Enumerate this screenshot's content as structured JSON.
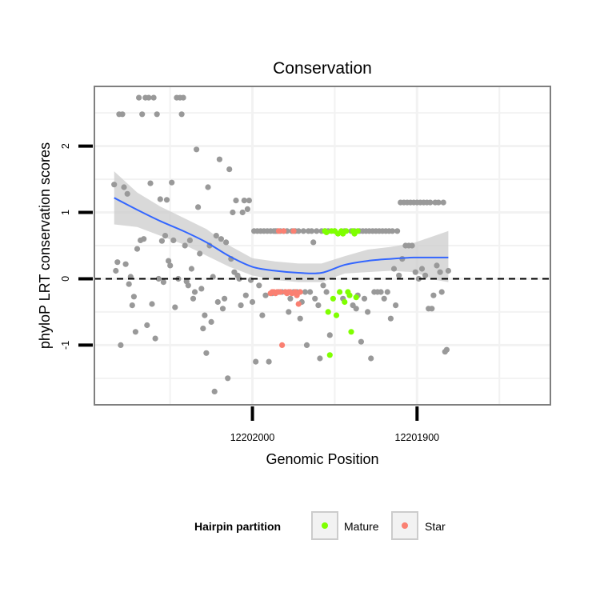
{
  "chart_data": {
    "type": "scatter",
    "title": "Conservation",
    "xlabel": "Genomic Position",
    "ylabel": "phyloP LRT conservation scores",
    "x_ticks": [
      {
        "value": 12202000,
        "label": "12202000"
      },
      {
        "value": 12201900,
        "label": "12201900"
      }
    ],
    "y_ticks": [
      {
        "value": -1,
        "label": "-1"
      },
      {
        "value": 0,
        "label": "0"
      },
      {
        "value": 1,
        "label": "1"
      },
      {
        "value": 2,
        "label": "2"
      }
    ],
    "xlim": [
      12202096,
      12201819
    ],
    "ylim": [
      -1.9,
      2.9
    ],
    "x_reversed": true,
    "reference_line": {
      "y": 0,
      "style": "dashed"
    },
    "legend": {
      "title": "Hairpin partition",
      "position": "bottom",
      "entries": [
        {
          "name": "Mature",
          "color": "#7fff00"
        },
        {
          "name": "Star",
          "color": "#fa8072"
        }
      ]
    },
    "colors": {
      "Other": "#999999",
      "Mature": "#7fff00",
      "Star": "#fa8072",
      "smooth": "#3366ff",
      "ribbon": "#cccccc",
      "grid": "#f2f2f2",
      "panel_border": "#7f7f7f"
    },
    "series": [
      {
        "name": "Other",
        "points": [
          [
            12202084,
            1.42
          ],
          [
            12202083,
            0.12
          ],
          [
            12202082,
            0.25
          ],
          [
            12202081,
            2.48
          ],
          [
            12202080,
            -1.0
          ],
          [
            12202079,
            2.48
          ],
          [
            12202078,
            1.38
          ],
          [
            12202077,
            0.22
          ],
          [
            12202076,
            1.28
          ],
          [
            12202075,
            -0.08
          ],
          [
            12202074,
            0.03
          ],
          [
            12202073,
            -0.4
          ],
          [
            12202072,
            -0.27
          ],
          [
            12202071,
            -0.8
          ],
          [
            12202070,
            0.45
          ],
          [
            12202069,
            2.73
          ],
          [
            12202068,
            0.58
          ],
          [
            12202067,
            2.48
          ],
          [
            12202066,
            0.6
          ],
          [
            12202065,
            2.73
          ],
          [
            12202064,
            -0.7
          ],
          [
            12202063,
            2.73
          ],
          [
            12202062,
            1.44
          ],
          [
            12202061,
            -0.38
          ],
          [
            12202060,
            2.73
          ],
          [
            12202059,
            -0.9
          ],
          [
            12202058,
            2.48
          ],
          [
            12202057,
            0.0
          ],
          [
            12202056,
            1.2
          ],
          [
            12202055,
            0.57
          ],
          [
            12202054,
            -0.05
          ],
          [
            12202053,
            0.65
          ],
          [
            12202052,
            1.19
          ],
          [
            12202051,
            0.27
          ],
          [
            12202050,
            0.2
          ],
          [
            12202049,
            1.45
          ],
          [
            12202048,
            0.58
          ],
          [
            12202047,
            -0.43
          ],
          [
            12202046,
            2.73
          ],
          [
            12202045,
            0.0
          ],
          [
            12202044,
            2.73
          ],
          [
            12202043,
            2.48
          ],
          [
            12202042,
            2.73
          ],
          [
            12202041,
            0.5
          ],
          [
            12202040,
            -0.04
          ],
          [
            12202039,
            -0.1
          ],
          [
            12202038,
            0.58
          ],
          [
            12202037,
            0.15
          ],
          [
            12202036,
            -0.3
          ],
          [
            12202035,
            -0.2
          ],
          [
            12202034,
            1.95
          ],
          [
            12202033,
            1.08
          ],
          [
            12202032,
            0.38
          ],
          [
            12202031,
            -0.15
          ],
          [
            12202030,
            -0.75
          ],
          [
            12202029,
            -0.55
          ],
          [
            12202028,
            -1.12
          ],
          [
            12202027,
            1.38
          ],
          [
            12202026,
            0.5
          ],
          [
            12202025,
            -0.65
          ],
          [
            12202024,
            0.03
          ],
          [
            12202023,
            -1.7
          ],
          [
            12202022,
            0.65
          ],
          [
            12202021,
            -0.35
          ],
          [
            12202020,
            1.8
          ],
          [
            12202019,
            0.6
          ],
          [
            12202018,
            -0.45
          ],
          [
            12202017,
            -0.3
          ],
          [
            12202016,
            0.55
          ],
          [
            12202015,
            -1.5
          ],
          [
            12202014,
            1.65
          ],
          [
            12202013,
            0.3
          ],
          [
            12202012,
            1.0
          ],
          [
            12202011,
            0.1
          ],
          [
            12202010,
            1.18
          ],
          [
            12202009,
            0.05
          ],
          [
            12202008,
            0.0
          ],
          [
            12202007,
            -0.4
          ],
          [
            12202006,
            1.0
          ],
          [
            12202005,
            1.18
          ],
          [
            12202004,
            -0.25
          ],
          [
            12202003,
            1.05
          ],
          [
            12202002,
            1.18
          ],
          [
            12202001,
            -0.02
          ],
          [
            12202000,
            -0.35
          ],
          [
            12201999,
            0.72
          ],
          [
            12201998,
            -1.25
          ],
          [
            12201997,
            0.72
          ],
          [
            12201996,
            -0.1
          ],
          [
            12201995,
            0.72
          ],
          [
            12201994,
            -0.55
          ],
          [
            12201993,
            0.72
          ],
          [
            12201992,
            -0.25
          ],
          [
            12201991,
            0.72
          ],
          [
            12201990,
            -1.25
          ],
          [
            12201989,
            0.72
          ],
          [
            12201988,
            -0.22
          ],
          [
            12201987,
            0.72
          ],
          [
            12201986,
            0.72
          ],
          [
            12201985,
            0.72
          ],
          [
            12201984,
            -0.2
          ],
          [
            12201983,
            0.72
          ],
          [
            12201982,
            -0.2
          ],
          [
            12201981,
            0.72
          ],
          [
            12201980,
            -0.2
          ],
          [
            12201979,
            0.72
          ],
          [
            12201978,
            -0.5
          ],
          [
            12201977,
            -0.3
          ],
          [
            12201976,
            0.72
          ],
          [
            12201975,
            -0.2
          ],
          [
            12201974,
            0.72
          ],
          [
            12201973,
            -0.2
          ],
          [
            12201972,
            0.72
          ],
          [
            12201971,
            -0.6
          ],
          [
            12201970,
            -0.35
          ],
          [
            12201969,
            0.72
          ],
          [
            12201968,
            -0.2
          ],
          [
            12201967,
            -1.0
          ],
          [
            12201966,
            0.72
          ],
          [
            12201965,
            -0.2
          ],
          [
            12201964,
            0.72
          ],
          [
            12201963,
            0.55
          ],
          [
            12201962,
            -0.3
          ],
          [
            12201961,
            0.72
          ],
          [
            12201960,
            -0.4
          ],
          [
            12201959,
            -1.2
          ],
          [
            12201958,
            0.72
          ],
          [
            12201957,
            -0.1
          ],
          [
            12201956,
            0.72
          ],
          [
            12201955,
            -0.2
          ],
          [
            12201954,
            0.72
          ],
          [
            12201953,
            -0.85
          ],
          [
            12201950,
            0.72
          ],
          [
            12201945,
            -0.3
          ],
          [
            12201944,
            0.72
          ],
          [
            12201940,
            0.72
          ],
          [
            12201939,
            -0.4
          ],
          [
            12201938,
            0.72
          ],
          [
            12201937,
            -0.45
          ],
          [
            12201936,
            -0.25
          ],
          [
            12201935,
            0.72
          ],
          [
            12201934,
            -0.95
          ],
          [
            12201933,
            0.72
          ],
          [
            12201932,
            -0.3
          ],
          [
            12201931,
            0.72
          ],
          [
            12201930,
            -0.5
          ],
          [
            12201929,
            0.72
          ],
          [
            12201928,
            -1.2
          ],
          [
            12201927,
            0.72
          ],
          [
            12201926,
            -0.2
          ],
          [
            12201925,
            0.72
          ],
          [
            12201924,
            -0.2
          ],
          [
            12201923,
            0.72
          ],
          [
            12201922,
            -0.2
          ],
          [
            12201921,
            0.72
          ],
          [
            12201920,
            -0.3
          ],
          [
            12201919,
            0.72
          ],
          [
            12201918,
            -0.2
          ],
          [
            12201917,
            0.72
          ],
          [
            12201916,
            -0.6
          ],
          [
            12201915,
            0.72
          ],
          [
            12201914,
            0.15
          ],
          [
            12201913,
            -0.4
          ],
          [
            12201912,
            0.72
          ],
          [
            12201911,
            0.05
          ],
          [
            12201910,
            1.15
          ],
          [
            12201909,
            0.3
          ],
          [
            12201908,
            1.15
          ],
          [
            12201907,
            0.5
          ],
          [
            12201906,
            1.15
          ],
          [
            12201905,
            0.5
          ],
          [
            12201904,
            1.15
          ],
          [
            12201903,
            0.5
          ],
          [
            12201902,
            1.15
          ],
          [
            12201901,
            0.1
          ],
          [
            12201900,
            1.15
          ],
          [
            12201899,
            0.0
          ],
          [
            12201898,
            1.15
          ],
          [
            12201897,
            0.15
          ],
          [
            12201896,
            1.15
          ],
          [
            12201895,
            0.05
          ],
          [
            12201894,
            1.15
          ],
          [
            12201893,
            -0.45
          ],
          [
            12201892,
            1.15
          ],
          [
            12201891,
            -0.45
          ],
          [
            12201890,
            -0.25
          ],
          [
            12201889,
            1.15
          ],
          [
            12201888,
            0.2
          ],
          [
            12201887,
            1.15
          ],
          [
            12201886,
            0.1
          ],
          [
            12201885,
            -0.2
          ],
          [
            12201884,
            1.15
          ],
          [
            12201883,
            -1.1
          ],
          [
            12201882,
            -1.07
          ],
          [
            12201881,
            0.12
          ]
        ]
      },
      {
        "name": "Mature",
        "points": [
          [
            12201956,
            0.72
          ],
          [
            12201955,
            0.7
          ],
          [
            12201954,
            -0.5
          ],
          [
            12201953,
            -1.15
          ],
          [
            12201952,
            0.72
          ],
          [
            12201951,
            -0.3
          ],
          [
            12201950,
            0.72
          ],
          [
            12201949,
            -0.55
          ],
          [
            12201948,
            0.68
          ],
          [
            12201947,
            -0.2
          ],
          [
            12201946,
            0.72
          ],
          [
            12201945,
            0.68
          ],
          [
            12201944,
            -0.35
          ],
          [
            12201943,
            0.72
          ],
          [
            12201942,
            -0.2
          ],
          [
            12201941,
            -0.25
          ],
          [
            12201940,
            -0.8
          ],
          [
            12201939,
            0.72
          ],
          [
            12201938,
            0.68
          ],
          [
            12201937,
            -0.28
          ],
          [
            12201936,
            0.72
          ]
        ]
      },
      {
        "name": "Star",
        "points": [
          [
            12201989,
            -0.22
          ],
          [
            12201988,
            -0.2
          ],
          [
            12201987,
            -0.2
          ],
          [
            12201986,
            -0.22
          ],
          [
            12201985,
            -0.2
          ],
          [
            12201984,
            0.72
          ],
          [
            12201983,
            -0.2
          ],
          [
            12201982,
            -1.0
          ],
          [
            12201981,
            0.72
          ],
          [
            12201980,
            -0.2
          ],
          [
            12201979,
            -0.22
          ],
          [
            12201978,
            -0.2
          ],
          [
            12201977,
            -0.2
          ],
          [
            12201976,
            -0.22
          ],
          [
            12201975,
            0.72
          ],
          [
            12201974,
            -0.2
          ],
          [
            12201973,
            -0.25
          ],
          [
            12201972,
            -0.38
          ],
          [
            12201971,
            -0.2
          ]
        ]
      }
    ],
    "smooth": {
      "method": "loess",
      "color": "#3366ff",
      "x": [
        12202084,
        12202070,
        12202056,
        12202042,
        12202028,
        12202014,
        12202000,
        12201986,
        12201972,
        12201958,
        12201944,
        12201930,
        12201916,
        12201902,
        12201888,
        12201881
      ],
      "y": [
        1.22,
        1.04,
        0.87,
        0.72,
        0.55,
        0.34,
        0.18,
        0.12,
        0.09,
        0.09,
        0.21,
        0.27,
        0.3,
        0.32,
        0.32,
        0.32
      ],
      "lower": [
        0.82,
        0.78,
        0.65,
        0.52,
        0.35,
        0.18,
        0.05,
        -0.02,
        -0.05,
        -0.05,
        0.08,
        0.1,
        0.12,
        0.1,
        -0.02,
        -0.05
      ],
      "upper": [
        1.62,
        1.3,
        1.09,
        0.92,
        0.75,
        0.5,
        0.31,
        0.26,
        0.23,
        0.23,
        0.34,
        0.44,
        0.48,
        0.54,
        0.66,
        0.72
      ]
    }
  }
}
